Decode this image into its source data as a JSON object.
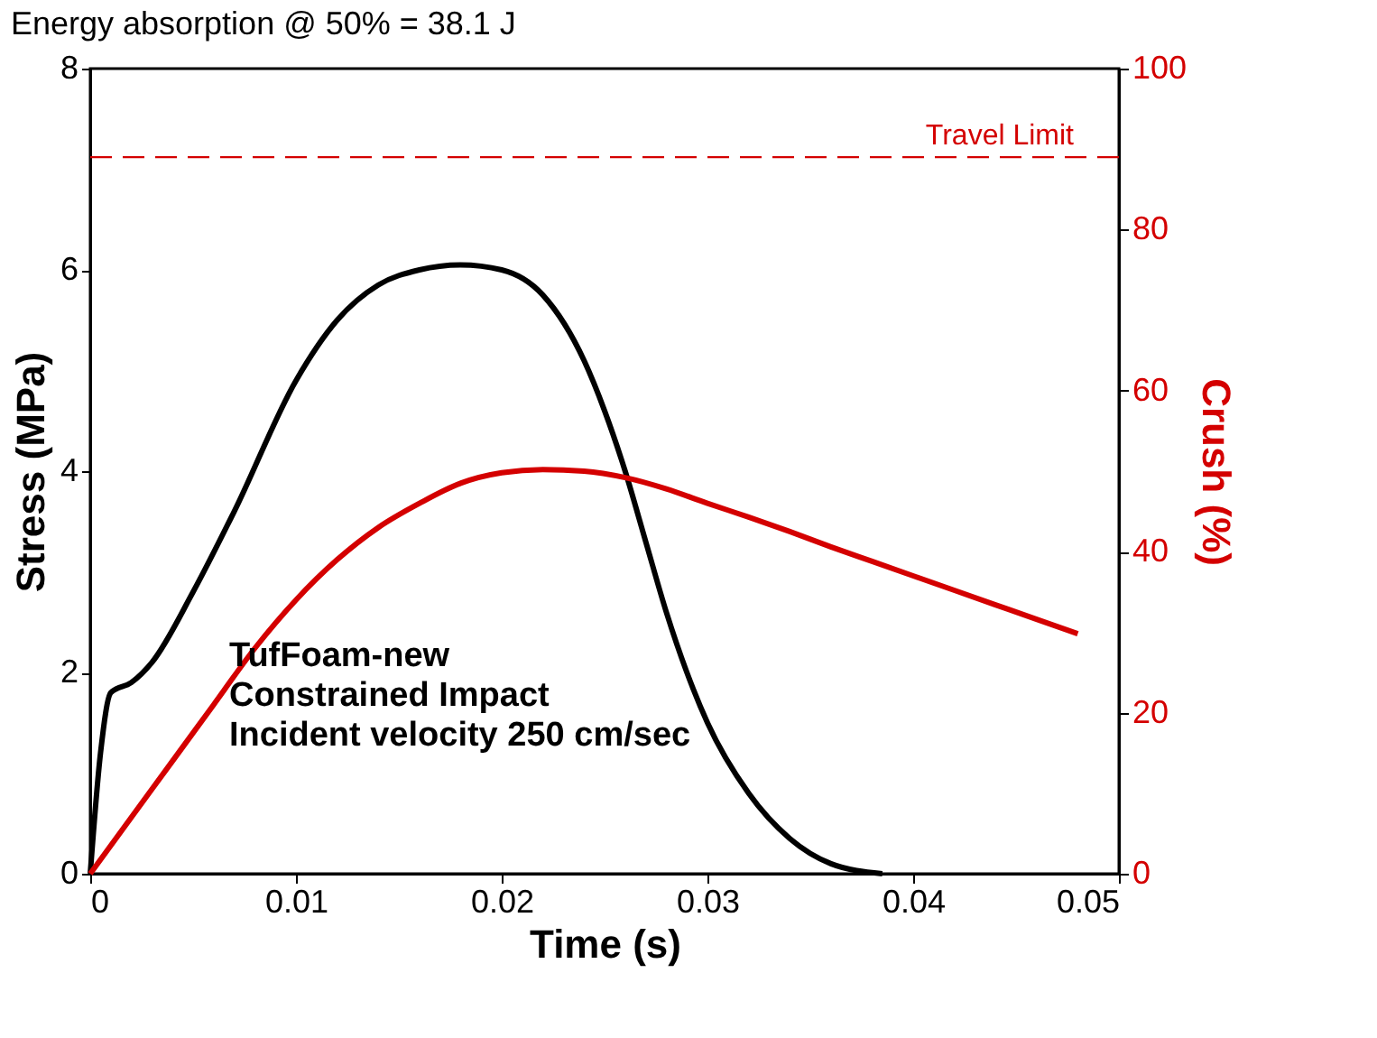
{
  "chart_data": {
    "type": "line",
    "title": "Energy absorption @ 50% = 38.1 J",
    "xlabel": "Time (s)",
    "ylabel": "Stress (MPa)",
    "y2label": "Crush (%)",
    "xlim": [
      0,
      0.05
    ],
    "xticks": [
      0,
      0.01,
      0.02,
      0.03,
      0.04,
      0.05
    ],
    "ylim": [
      0,
      8
    ],
    "yticks": [
      0,
      2,
      4,
      6,
      8
    ],
    "y2lim": [
      0,
      100
    ],
    "y2ticks": [
      0,
      20,
      40,
      60,
      80,
      100
    ],
    "grid": false,
    "line_style": "solid",
    "marker": "none",
    "series": [
      {
        "color": "#000000",
        "x": [
          0,
          0.0005,
          0.001,
          0.002,
          0.003,
          0.005,
          0.007,
          0.01,
          0.012,
          0.014,
          0.016,
          0.018,
          0.02,
          0.022,
          0.024,
          0.025,
          0.026,
          0.027,
          0.028,
          0.029,
          0.03,
          0.032,
          0.034,
          0.036,
          0.0385
        ],
        "values": [
          0,
          1.2,
          1.8,
          1.9,
          2.1,
          2.8,
          3.6,
          4.9,
          5.5,
          5.85,
          6.0,
          6.05,
          6.0,
          5.75,
          5.1,
          4.6,
          4.0,
          3.3,
          2.6,
          2.0,
          1.5,
          0.8,
          0.35,
          0.1,
          0
        ]
      },
      {
        "color": "#d40000",
        "axis": "y2",
        "x": [
          0,
          0.002,
          0.004,
          0.006,
          0.008,
          0.01,
          0.012,
          0.014,
          0.016,
          0.018,
          0.02,
          0.022,
          0.024,
          0.026,
          0.028,
          0.03,
          0.032,
          0.034,
          0.036,
          0.038,
          0.04,
          0.042,
          0.044,
          0.046,
          0.048
        ],
        "values": [
          0,
          7,
          14,
          21,
          28,
          34,
          39,
          43,
          46,
          48.5,
          49.8,
          50.2,
          50,
          49.2,
          47.8,
          46,
          44.3,
          42.5,
          40.6,
          38.8,
          37,
          35.2,
          33.4,
          31.6,
          29.8
        ]
      }
    ],
    "ref_lines": [
      {
        "axis": "y2",
        "value": 89,
        "label": "Travel Limit",
        "color": "#d40000",
        "line_style": "dashed"
      }
    ],
    "annotations": [
      "TufFoam-new",
      "Constrained Impact",
      "Incident velocity  250  cm/sec"
    ]
  }
}
